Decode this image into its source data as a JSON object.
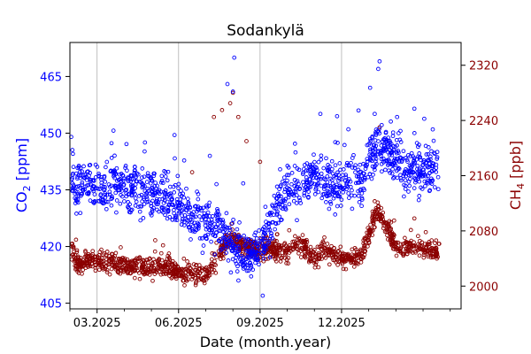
{
  "chart_data": {
    "type": "scatter",
    "title": "Sodankylä",
    "xlabel": "Date (month.year)",
    "ylabel_left": {
      "main": "CO",
      "sub": "2",
      "unit": " [ppm]"
    },
    "ylabel_right": {
      "main": "CH",
      "sub": "4",
      "unit": " [ppb]"
    },
    "x_range_months": [
      0.0,
      14.4
    ],
    "x_ticks": [
      {
        "month": 1.0,
        "label": "03.2025"
      },
      {
        "month": 4.0,
        "label": "06.2025"
      },
      {
        "month": 7.0,
        "label": "09.2025"
      },
      {
        "month": 10.0,
        "label": "12.2025"
      }
    ],
    "x_minor_ticks_months": [
      0,
      2,
      3,
      5,
      6,
      8,
      9,
      11,
      12,
      13,
      14
    ],
    "grid": "vertical major",
    "left_axis": {
      "ylim": [
        403.5,
        474
      ],
      "ticks": [
        405,
        420,
        435,
        450,
        465
      ],
      "color": "#0000ff"
    },
    "right_axis": {
      "ylim": [
        1967,
        2353
      ],
      "ticks": [
        2000,
        2080,
        2160,
        2240,
        2320
      ],
      "color": "#8b0000"
    },
    "series": [
      {
        "name": "CO2",
        "axis": "left",
        "marker": "open-circle",
        "color": "#0000ff",
        "profile": [
          [
            0.0,
            438
          ],
          [
            0.3,
            436
          ],
          [
            0.8,
            437
          ],
          [
            1.0,
            436
          ],
          [
            1.5,
            436
          ],
          [
            2.0,
            435
          ],
          [
            2.5,
            435
          ],
          [
            3.0,
            434
          ],
          [
            3.5,
            434
          ],
          [
            4.0,
            430
          ],
          [
            4.3,
            428
          ],
          [
            4.7,
            427
          ],
          [
            5.0,
            427
          ],
          [
            5.3,
            426
          ],
          [
            5.7,
            424
          ],
          [
            6.0,
            420
          ],
          [
            6.3,
            418
          ],
          [
            6.6,
            417
          ],
          [
            7.0,
            420
          ],
          [
            7.3,
            425
          ],
          [
            7.6,
            430
          ],
          [
            8.0,
            435
          ],
          [
            8.3,
            436
          ],
          [
            8.7,
            437
          ],
          [
            9.0,
            439
          ],
          [
            9.3,
            438
          ],
          [
            9.7,
            436
          ],
          [
            10.0,
            438
          ],
          [
            10.3,
            437
          ],
          [
            10.7,
            438
          ],
          [
            11.0,
            442
          ],
          [
            11.3,
            446
          ],
          [
            11.6,
            446
          ],
          [
            12.0,
            443
          ],
          [
            12.3,
            441
          ],
          [
            12.7,
            440
          ],
          [
            13.2,
            440
          ],
          [
            13.6,
            440
          ]
        ],
        "spread": 6,
        "highlights": [
          {
            "month": 0.05,
            "value": 449
          },
          {
            "month": 3.85,
            "value": 449.5
          },
          {
            "month": 5.15,
            "value": 444
          },
          {
            "month": 5.8,
            "value": 463
          },
          {
            "month": 6.05,
            "value": 470
          },
          {
            "month": 6.0,
            "value": 461
          },
          {
            "month": 7.1,
            "value": 407
          },
          {
            "month": 11.05,
            "value": 462
          },
          {
            "month": 11.4,
            "value": 469
          },
          {
            "month": 11.35,
            "value": 467
          },
          {
            "month": 12.1,
            "value": 450
          }
        ]
      },
      {
        "name": "CH4",
        "axis": "right",
        "marker": "open-circle",
        "color": "#8b0000",
        "profile": [
          [
            0.0,
            2060
          ],
          [
            0.3,
            2030
          ],
          [
            0.8,
            2040
          ],
          [
            1.0,
            2035
          ],
          [
            1.5,
            2035
          ],
          [
            2.0,
            2030
          ],
          [
            2.5,
            2030
          ],
          [
            3.0,
            2025
          ],
          [
            3.5,
            2030
          ],
          [
            4.0,
            2020
          ],
          [
            4.3,
            2018
          ],
          [
            4.7,
            2015
          ],
          [
            5.0,
            2020
          ],
          [
            5.3,
            2030
          ],
          [
            5.7,
            2060
          ],
          [
            6.0,
            2070
          ],
          [
            6.3,
            2060
          ],
          [
            6.6,
            2055
          ],
          [
            7.0,
            2050
          ],
          [
            7.3,
            2055
          ],
          [
            7.6,
            2050
          ],
          [
            8.0,
            2050
          ],
          [
            8.3,
            2060
          ],
          [
            8.7,
            2055
          ],
          [
            9.0,
            2040
          ],
          [
            9.3,
            2050
          ],
          [
            9.7,
            2045
          ],
          [
            10.0,
            2040
          ],
          [
            10.3,
            2040
          ],
          [
            10.7,
            2045
          ],
          [
            11.0,
            2070
          ],
          [
            11.3,
            2110
          ],
          [
            11.6,
            2090
          ],
          [
            12.0,
            2060
          ],
          [
            12.3,
            2055
          ],
          [
            12.7,
            2060
          ],
          [
            13.2,
            2050
          ],
          [
            13.6,
            2050
          ]
        ],
        "spread": 14,
        "highlights": [
          {
            "month": 5.3,
            "value": 2245
          },
          {
            "month": 5.6,
            "value": 2255
          },
          {
            "month": 5.9,
            "value": 2265
          },
          {
            "month": 6.0,
            "value": 2280
          },
          {
            "month": 6.2,
            "value": 2245
          },
          {
            "month": 4.5,
            "value": 2165
          },
          {
            "month": 6.5,
            "value": 2210
          },
          {
            "month": 7.0,
            "value": 2180
          },
          {
            "month": 11.4,
            "value": 2230
          }
        ]
      }
    ]
  }
}
